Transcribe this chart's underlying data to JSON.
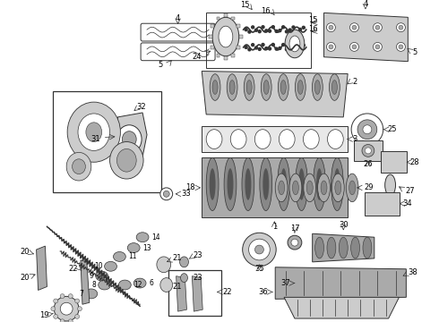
{
  "bg_color": "#ffffff",
  "line_color": "#333333",
  "gray_light": "#cccccc",
  "gray_mid": "#aaaaaa",
  "gray_dark": "#888888",
  "figsize": [
    4.9,
    3.6
  ],
  "dpi": 100
}
